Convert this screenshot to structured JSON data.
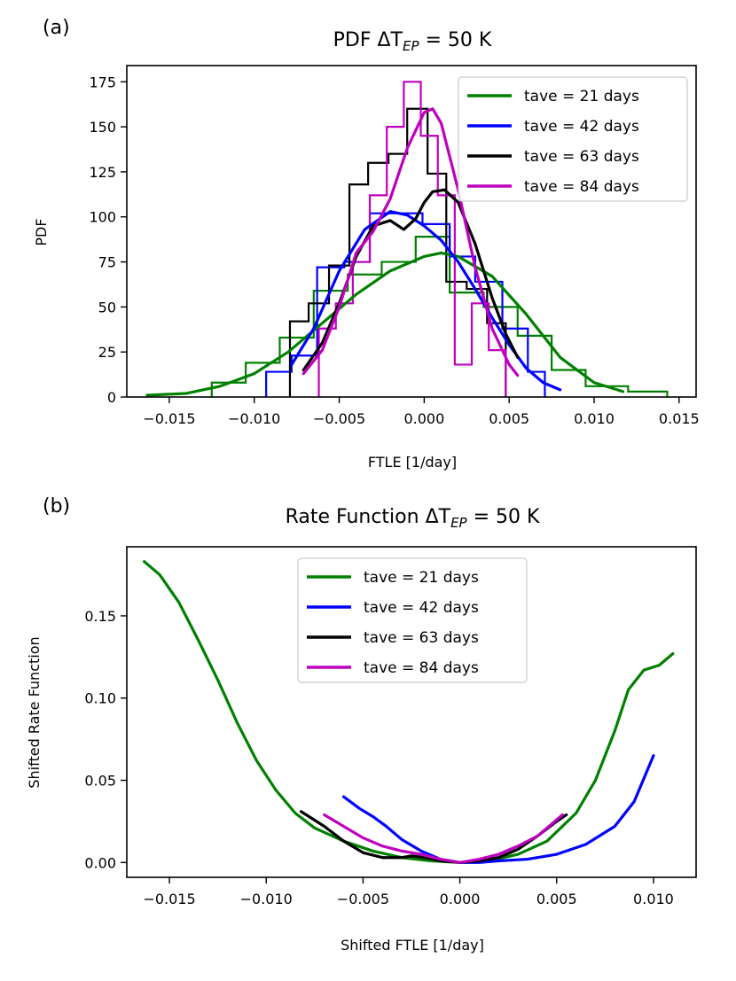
{
  "figure": {
    "background": "#ffffff"
  },
  "chart_data": [
    {
      "id": "a",
      "type": "histogram+line",
      "panel_label": "(a)",
      "title": "PDF ΔT",
      "title_sub": "EP",
      "title_tail": " = 50 K",
      "xlabel": "FTLE [1/day]",
      "ylabel": "PDF",
      "xlim": [
        -0.0175,
        0.016
      ],
      "ylim": [
        0,
        184
      ],
      "xticks": [
        -0.015,
        -0.01,
        -0.005,
        0.0,
        0.005,
        0.01,
        0.015
      ],
      "xtick_labels": [
        "−0.015",
        "−0.010",
        "−0.005",
        "0.000",
        "0.005",
        "0.010",
        "0.015"
      ],
      "yticks": [
        0,
        25,
        50,
        75,
        100,
        125,
        150,
        175
      ],
      "ytick_labels": [
        "0",
        "25",
        "50",
        "75",
        "100",
        "125",
        "150",
        "175"
      ],
      "legend": {
        "position": "upper-right",
        "entries": [
          "tave = 21 days",
          "tave = 42 days",
          "tave = 63 days",
          "tave = 84 days"
        ]
      },
      "series": [
        {
          "name": "tave = 21 days",
          "color": "#008000",
          "hist_edges": [
            -0.0125,
            -0.0105,
            -0.0085,
            -0.0065,
            -0.0045,
            -0.0025,
            -0.0005,
            0.0015,
            0.0035,
            0.0055,
            0.0075,
            0.0095,
            0.012,
            0.0143
          ],
          "hist_values": [
            8,
            19,
            33,
            59,
            68,
            75,
            89,
            58,
            50,
            34,
            15,
            6,
            3
          ],
          "line": [
            [
              -0.0163,
              1
            ],
            [
              -0.014,
              2
            ],
            [
              -0.012,
              6
            ],
            [
              -0.01,
              13
            ],
            [
              -0.008,
              25
            ],
            [
              -0.006,
              41
            ],
            [
              -0.004,
              57
            ],
            [
              -0.002,
              70
            ],
            [
              0.0,
              78
            ],
            [
              0.001,
              80
            ],
            [
              0.002,
              78
            ],
            [
              0.004,
              67
            ],
            [
              0.006,
              46
            ],
            [
              0.008,
              22
            ],
            [
              0.01,
              8
            ],
            [
              0.0117,
              3
            ]
          ]
        },
        {
          "name": "tave = 42 days",
          "color": "#0000ff",
          "hist_edges": [
            -0.0093,
            -0.0078,
            -0.0063,
            -0.0047,
            -0.0032,
            -0.0016,
            -0.0001,
            0.0015,
            0.003,
            0.0046,
            0.0061,
            0.0071
          ],
          "hist_values": [
            14,
            23,
            72,
            75,
            102,
            102,
            96,
            78,
            64,
            38,
            14
          ],
          "line": [
            [
              -0.0078,
              18
            ],
            [
              -0.0065,
              38
            ],
            [
              -0.005,
              70
            ],
            [
              -0.0035,
              93
            ],
            [
              -0.002,
              103
            ],
            [
              -0.001,
              101
            ],
            [
              0.0,
              95
            ],
            [
              0.001,
              87
            ],
            [
              0.002,
              75
            ],
            [
              0.003,
              60
            ],
            [
              0.004,
              44
            ],
            [
              0.005,
              29
            ],
            [
              0.006,
              16
            ],
            [
              0.007,
              8
            ],
            [
              0.008,
              4
            ]
          ]
        },
        {
          "name": "tave = 63 days",
          "color": "#000000",
          "hist_edges": [
            -0.0079,
            -0.0068,
            -0.0056,
            -0.0044,
            -0.0033,
            -0.0021,
            -0.001,
            0.0002,
            0.0013,
            0.0025,
            0.0037,
            0.0048
          ],
          "hist_values": [
            42,
            52,
            73,
            118,
            130,
            135,
            160,
            124,
            64,
            60,
            41
          ],
          "line": [
            [
              -0.0071,
              15
            ],
            [
              -0.006,
              30
            ],
            [
              -0.005,
              52
            ],
            [
              -0.004,
              78
            ],
            [
              -0.003,
              95
            ],
            [
              -0.002,
              98
            ],
            [
              -0.0012,
              93
            ],
            [
              -0.0005,
              99
            ],
            [
              0.0,
              108
            ],
            [
              0.0005,
              114
            ],
            [
              0.0012,
              115
            ],
            [
              0.002,
              108
            ],
            [
              0.003,
              85
            ],
            [
              0.004,
              55
            ],
            [
              0.0048,
              35
            ],
            [
              0.0055,
              22
            ]
          ]
        },
        {
          "name": "tave = 84 days",
          "color": "#bf00bf",
          "hist_edges": [
            -0.0062,
            -0.0052,
            -0.0042,
            -0.0032,
            -0.0022,
            -0.0012,
            -0.0002,
            0.0008,
            0.0018,
            0.0028,
            0.0038,
            0.0048
          ],
          "hist_values": [
            38,
            52,
            75,
            112,
            150,
            175,
            145,
            112,
            18,
            52,
            26
          ],
          "line": [
            [
              -0.0071,
              13
            ],
            [
              -0.006,
              26
            ],
            [
              -0.005,
              50
            ],
            [
              -0.004,
              80
            ],
            [
              -0.003,
              92
            ],
            [
              -0.002,
              110
            ],
            [
              -0.001,
              138
            ],
            [
              0.0,
              158
            ],
            [
              0.0005,
              160
            ],
            [
              0.001,
              152
            ],
            [
              0.002,
              115
            ],
            [
              0.003,
              72
            ],
            [
              0.004,
              38
            ],
            [
              0.005,
              18
            ],
            [
              0.0055,
              12
            ]
          ]
        }
      ]
    },
    {
      "id": "b",
      "type": "line",
      "panel_label": "(b)",
      "title": "Rate Function ΔT",
      "title_sub": "EP",
      "title_tail": " = 50 K",
      "xlabel": "Shifted FTLE [1/day]",
      "ylabel": "Shifted Rate Function",
      "xlim": [
        -0.0172,
        0.0122
      ],
      "ylim": [
        -0.009,
        0.192
      ],
      "xticks": [
        -0.015,
        -0.01,
        -0.005,
        0.0,
        0.005,
        0.01
      ],
      "xtick_labels": [
        "−0.015",
        "−0.010",
        "−0.005",
        "0.000",
        "0.005",
        "0.010"
      ],
      "yticks": [
        0.0,
        0.05,
        0.1,
        0.15
      ],
      "ytick_labels": [
        "0.00",
        "0.05",
        "0.10",
        "0.15"
      ],
      "legend": {
        "position": "upper-center",
        "entries": [
          "tave = 21 days",
          "tave = 42 days",
          "tave = 63 days",
          "tave = 84 days"
        ]
      },
      "series": [
        {
          "name": "tave = 21 days",
          "color": "#008000",
          "line": [
            [
              -0.0163,
              0.183
            ],
            [
              -0.0155,
              0.175
            ],
            [
              -0.0145,
              0.158
            ],
            [
              -0.0135,
              0.135
            ],
            [
              -0.0125,
              0.111
            ],
            [
              -0.0115,
              0.085
            ],
            [
              -0.0105,
              0.062
            ],
            [
              -0.0095,
              0.044
            ],
            [
              -0.0085,
              0.03
            ],
            [
              -0.0075,
              0.021
            ],
            [
              -0.006,
              0.013
            ],
            [
              -0.0045,
              0.007
            ],
            [
              -0.003,
              0.003
            ],
            [
              -0.0015,
              0.001
            ],
            [
              0.0,
              0.0
            ],
            [
              0.0015,
              0.001
            ],
            [
              0.003,
              0.005
            ],
            [
              0.0045,
              0.013
            ],
            [
              0.006,
              0.03
            ],
            [
              0.007,
              0.05
            ],
            [
              0.008,
              0.08
            ],
            [
              0.0087,
              0.105
            ],
            [
              0.0095,
              0.117
            ],
            [
              0.0103,
              0.12
            ],
            [
              0.011,
              0.127
            ]
          ]
        },
        {
          "name": "tave = 42 days",
          "color": "#0000ff",
          "line": [
            [
              -0.006,
              0.04
            ],
            [
              -0.0052,
              0.033
            ],
            [
              -0.0045,
              0.028
            ],
            [
              -0.0038,
              0.022
            ],
            [
              -0.003,
              0.014
            ],
            [
              -0.002,
              0.007
            ],
            [
              -0.001,
              0.002
            ],
            [
              0.0,
              0.0
            ],
            [
              0.001,
              0.0
            ],
            [
              0.002,
              0.001
            ],
            [
              0.0035,
              0.002
            ],
            [
              0.005,
              0.005
            ],
            [
              0.0065,
              0.011
            ],
            [
              0.008,
              0.022
            ],
            [
              0.009,
              0.037
            ],
            [
              0.01,
              0.065
            ]
          ]
        },
        {
          "name": "tave = 63 days",
          "color": "#000000",
          "line": [
            [
              -0.0082,
              0.031
            ],
            [
              -0.007,
              0.022
            ],
            [
              -0.006,
              0.013
            ],
            [
              -0.005,
              0.006
            ],
            [
              -0.004,
              0.003
            ],
            [
              -0.003,
              0.003
            ],
            [
              -0.0025,
              0.004
            ],
            [
              -0.0018,
              0.003
            ],
            [
              -0.001,
              0.001
            ],
            [
              0.0,
              0.0
            ],
            [
              0.001,
              0.001
            ],
            [
              0.002,
              0.003
            ],
            [
              0.003,
              0.008
            ],
            [
              0.004,
              0.016
            ],
            [
              0.005,
              0.025
            ],
            [
              0.0055,
              0.029
            ]
          ]
        },
        {
          "name": "tave = 84 days",
          "color": "#bf00bf",
          "line": [
            [
              -0.007,
              0.029
            ],
            [
              -0.006,
              0.022
            ],
            [
              -0.005,
              0.015
            ],
            [
              -0.004,
              0.01
            ],
            [
              -0.003,
              0.007
            ],
            [
              -0.002,
              0.005
            ],
            [
              -0.001,
              0.002
            ],
            [
              0.0,
              0.0
            ],
            [
              0.001,
              0.002
            ],
            [
              0.002,
              0.005
            ],
            [
              0.003,
              0.01
            ],
            [
              0.004,
              0.016
            ],
            [
              0.0053,
              0.029
            ]
          ]
        }
      ]
    }
  ]
}
